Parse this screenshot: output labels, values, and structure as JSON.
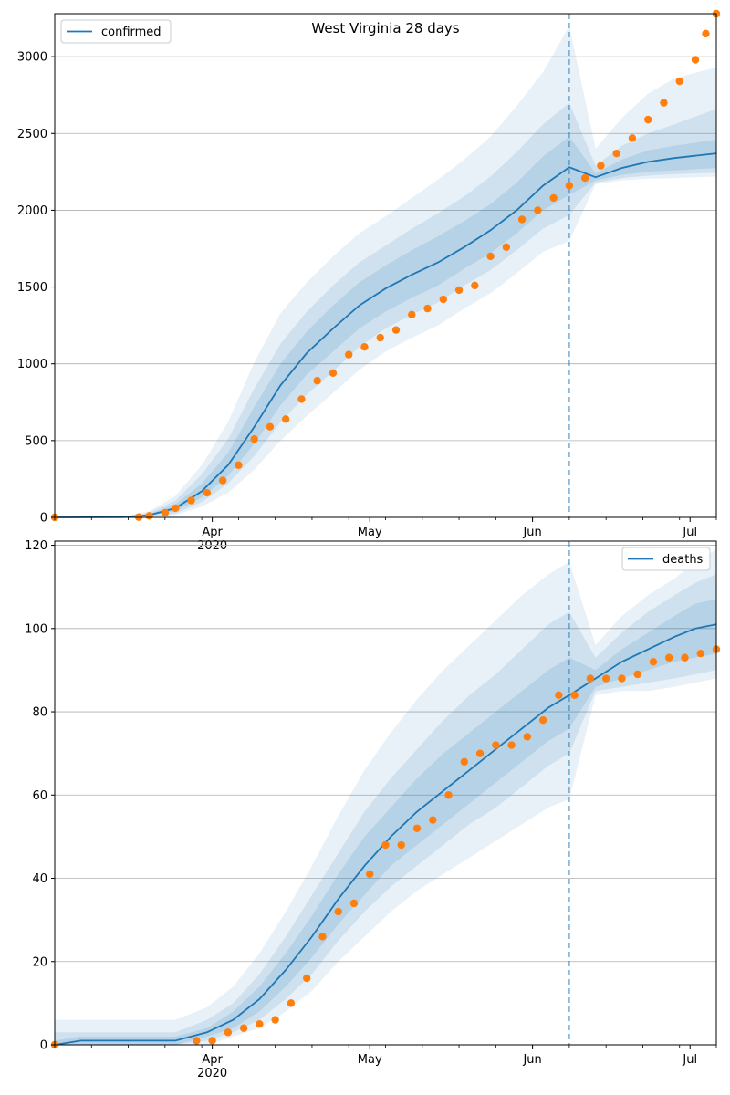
{
  "title": "West Virginia 28 days",
  "colors": {
    "model": "#1f77b4",
    "observed": "#ff7f0e",
    "grid": "#b0b0b0",
    "band": "#1f77b4",
    "cutoff": "#1f77b4"
  },
  "chart_data": [
    {
      "type": "line",
      "title": "West Virginia 28 days",
      "legend": {
        "label": "confirmed",
        "placement": "top-left"
      },
      "grid": "horizontal",
      "xlim": [
        "2020-03-02",
        "2020-07-06"
      ],
      "ylim": [
        0,
        3280
      ],
      "yticks": [
        0,
        500,
        1000,
        1500,
        2000,
        2500,
        3000
      ],
      "xticks": [
        {
          "date": "2020-04-01",
          "label": "Apr",
          "sublabel": "2020"
        },
        {
          "date": "2020-05-01",
          "label": "May"
        },
        {
          "date": "2020-06-01",
          "label": "Jun"
        },
        {
          "date": "2020-07-01",
          "label": "Jul"
        }
      ],
      "forecast_start": "2020-06-08",
      "model": {
        "dates": [
          "2020-03-02",
          "2020-03-15",
          "2020-03-20",
          "2020-03-25",
          "2020-03-30",
          "2020-04-04",
          "2020-04-09",
          "2020-04-14",
          "2020-04-19",
          "2020-04-24",
          "2020-04-29",
          "2020-05-04",
          "2020-05-09",
          "2020-05-14",
          "2020-05-19",
          "2020-05-24",
          "2020-05-29",
          "2020-06-03",
          "2020-06-08",
          "2020-06-13",
          "2020-06-18",
          "2020-06-23",
          "2020-06-28",
          "2020-07-06"
        ],
        "values": [
          0,
          2,
          15,
          60,
          170,
          340,
          590,
          860,
          1070,
          1230,
          1380,
          1490,
          1580,
          1660,
          1760,
          1870,
          2000,
          2160,
          2280,
          2215,
          2275,
          2315,
          2340,
          2370
        ]
      },
      "bands": {
        "inner": {
          "lower": [
            0,
            0,
            10,
            40,
            130,
            270,
            480,
            730,
            930,
            1080,
            1230,
            1340,
            1430,
            1510,
            1620,
            1720,
            1850,
            2000,
            2100,
            2195,
            2230,
            2250,
            2260,
            2275
          ],
          "upper": [
            0,
            3,
            22,
            85,
            220,
            420,
            720,
            1000,
            1210,
            1380,
            1530,
            1640,
            1740,
            1830,
            1930,
            2040,
            2180,
            2350,
            2480,
            2240,
            2330,
            2390,
            2420,
            2460
          ]
        },
        "middle": {
          "lower": [
            0,
            0,
            6,
            25,
            100,
            220,
            400,
            620,
            800,
            950,
            1110,
            1230,
            1320,
            1400,
            1510,
            1610,
            1740,
            1880,
            1970,
            2180,
            2210,
            2225,
            2235,
            2245
          ],
          "upper": [
            0,
            5,
            30,
            110,
            280,
            510,
            840,
            1130,
            1340,
            1510,
            1660,
            1770,
            1880,
            1980,
            2090,
            2220,
            2380,
            2560,
            2700,
            2290,
            2420,
            2500,
            2560,
            2660
          ]
        },
        "outer": {
          "lower": [
            0,
            0,
            3,
            15,
            70,
            160,
            310,
            500,
            660,
            810,
            960,
            1080,
            1170,
            1250,
            1360,
            1460,
            1590,
            1730,
            1800,
            2170,
            2195,
            2205,
            2210,
            2220
          ],
          "upper": [
            0,
            8,
            40,
            140,
            340,
            620,
            1010,
            1330,
            1530,
            1700,
            1850,
            1960,
            2080,
            2200,
            2330,
            2480,
            2680,
            2900,
            3200,
            2400,
            2600,
            2760,
            2860,
            2930
          ]
        }
      },
      "observed": {
        "dates": [
          "2020-03-02",
          "2020-03-18",
          "2020-03-20",
          "2020-03-23",
          "2020-03-25",
          "2020-03-28",
          "2020-03-31",
          "2020-04-03",
          "2020-04-06",
          "2020-04-09",
          "2020-04-12",
          "2020-04-15",
          "2020-04-18",
          "2020-04-21",
          "2020-04-24",
          "2020-04-27",
          "2020-04-30",
          "2020-05-03",
          "2020-05-06",
          "2020-05-09",
          "2020-05-12",
          "2020-05-15",
          "2020-05-18",
          "2020-05-21",
          "2020-05-24",
          "2020-05-27",
          "2020-05-30",
          "2020-06-02",
          "2020-06-05",
          "2020-06-08",
          "2020-06-11",
          "2020-06-14",
          "2020-06-17",
          "2020-06-20",
          "2020-06-23",
          "2020-06-26",
          "2020-06-29",
          "2020-07-02",
          "2020-07-04",
          "2020-07-06"
        ],
        "values": [
          0,
          2,
          10,
          30,
          60,
          110,
          160,
          240,
          340,
          510,
          590,
          640,
          770,
          890,
          940,
          1060,
          1110,
          1170,
          1220,
          1320,
          1360,
          1420,
          1480,
          1510,
          1700,
          1760,
          1940,
          2000,
          2080,
          2160,
          2210,
          2290,
          2370,
          2470,
          2590,
          2700,
          2840,
          2980,
          3150,
          3280
        ]
      }
    },
    {
      "type": "line",
      "legend": {
        "label": "deaths",
        "placement": "top-right"
      },
      "grid": "horizontal",
      "xlim": [
        "2020-03-02",
        "2020-07-06"
      ],
      "ylim": [
        0,
        121
      ],
      "yticks": [
        0,
        20,
        40,
        60,
        80,
        100,
        120
      ],
      "xticks": [
        {
          "date": "2020-04-01",
          "label": "Apr",
          "sublabel": "2020"
        },
        {
          "date": "2020-05-01",
          "label": "May"
        },
        {
          "date": "2020-06-01",
          "label": "Jun"
        },
        {
          "date": "2020-07-01",
          "label": "Jul"
        }
      ],
      "forecast_start": "2020-06-08",
      "model": {
        "dates": [
          "2020-03-02",
          "2020-03-07",
          "2020-03-25",
          "2020-03-31",
          "2020-04-05",
          "2020-04-10",
          "2020-04-15",
          "2020-04-20",
          "2020-04-25",
          "2020-04-30",
          "2020-05-05",
          "2020-05-10",
          "2020-05-15",
          "2020-05-20",
          "2020-05-25",
          "2020-05-30",
          "2020-06-04",
          "2020-06-08",
          "2020-06-13",
          "2020-06-18",
          "2020-06-23",
          "2020-06-28",
          "2020-07-02",
          "2020-07-06"
        ],
        "values": [
          0,
          1,
          1,
          3,
          6,
          11,
          18,
          26,
          35,
          43,
          50,
          56,
          61,
          66,
          71,
          76,
          81,
          84,
          88,
          92,
          95,
          98,
          100,
          101
        ]
      },
      "bands": {
        "inner": {
          "lower": [
            0,
            0,
            0,
            2,
            4,
            8,
            14,
            21,
            29,
            36,
            43,
            48,
            53,
            58,
            63,
            68,
            73,
            76,
            86,
            88,
            90,
            92,
            93,
            94
          ],
          "upper": [
            1,
            2,
            2,
            4,
            8,
            14,
            22,
            31,
            41,
            50,
            57,
            64,
            70,
            75,
            80,
            85,
            90,
            93,
            90,
            95,
            99,
            103,
            106,
            107
          ]
        },
        "middle": {
          "lower": [
            0,
            0,
            0,
            1,
            3,
            6,
            11,
            17,
            25,
            32,
            38,
            43,
            48,
            53,
            57,
            62,
            67,
            70,
            85,
            86,
            87,
            88,
            89,
            90
          ],
          "upper": [
            3,
            3,
            3,
            6,
            10,
            17,
            26,
            36,
            46,
            56,
            64,
            71,
            78,
            84,
            89,
            95,
            101,
            104,
            93,
            99,
            104,
            108,
            111,
            113
          ]
        },
        "outer": {
          "lower": [
            0,
            0,
            0,
            0,
            2,
            4,
            8,
            13,
            20,
            26,
            32,
            37,
            41,
            45,
            49,
            53,
            57,
            59,
            84,
            85,
            85,
            86,
            87,
            88
          ],
          "upper": [
            6,
            6,
            6,
            9,
            14,
            22,
            32,
            43,
            55,
            66,
            75,
            83,
            90,
            96,
            102,
            108,
            113,
            116,
            96,
            103,
            108,
            112,
            116,
            119
          ]
        }
      },
      "observed": {
        "dates": [
          "2020-03-02",
          "2020-03-29",
          "2020-04-01",
          "2020-04-04",
          "2020-04-07",
          "2020-04-10",
          "2020-04-13",
          "2020-04-16",
          "2020-04-19",
          "2020-04-22",
          "2020-04-25",
          "2020-04-28",
          "2020-05-01",
          "2020-05-04",
          "2020-05-07",
          "2020-05-10",
          "2020-05-13",
          "2020-05-16",
          "2020-05-19",
          "2020-05-22",
          "2020-05-25",
          "2020-05-28",
          "2020-05-31",
          "2020-06-03",
          "2020-06-06",
          "2020-06-09",
          "2020-06-12",
          "2020-06-15",
          "2020-06-18",
          "2020-06-21",
          "2020-06-24",
          "2020-06-27",
          "2020-06-30",
          "2020-07-03",
          "2020-07-06"
        ],
        "values": [
          0,
          1,
          1,
          3,
          4,
          5,
          6,
          10,
          16,
          26,
          32,
          34,
          41,
          48,
          48,
          52,
          54,
          60,
          68,
          70,
          72,
          72,
          74,
          78,
          84,
          84,
          88,
          88,
          88,
          89,
          92,
          93,
          93,
          94,
          95
        ]
      }
    }
  ]
}
